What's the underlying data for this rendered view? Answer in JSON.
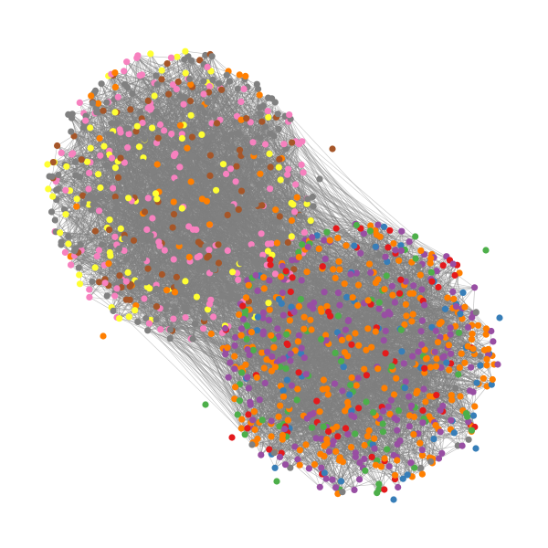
{
  "graph": {
    "edge_color": "#808080",
    "background": "#ffffff",
    "communities": [
      {
        "name": "cluster-left",
        "colors": [
          "#808080",
          "#f781bf",
          "#a65628",
          "#ffff33",
          "#ff7f00"
        ],
        "weights": [
          0.38,
          0.28,
          0.16,
          0.12,
          0.06
        ]
      },
      {
        "name": "cluster-right",
        "colors": [
          "#ff7f00",
          "#984ea3",
          "#4daf4a",
          "#e41a1c",
          "#377eb8",
          "#808080"
        ],
        "weights": [
          0.32,
          0.3,
          0.13,
          0.11,
          0.09,
          0.05
        ]
      }
    ]
  }
}
